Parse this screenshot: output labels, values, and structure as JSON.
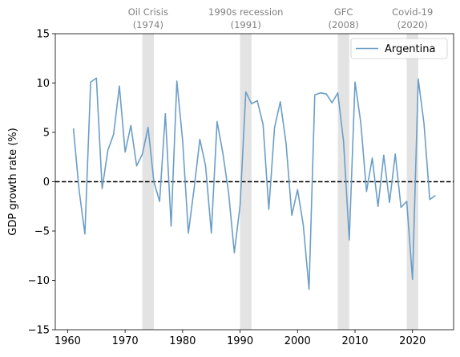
{
  "chart_data": {
    "type": "line",
    "title": "",
    "xlabel": "",
    "ylabel": "GDP growth rate (%)",
    "xlim": [
      1957.85,
      2027.15
    ],
    "ylim": [
      -15,
      15
    ],
    "xticks": [
      1960,
      1970,
      1980,
      1990,
      2000,
      2010,
      2020
    ],
    "yticks": [
      -15,
      -10,
      -5,
      0,
      5,
      10,
      15
    ],
    "grid": false,
    "legend_position": "top-right",
    "zero_line": {
      "y": 0,
      "style": "dashed",
      "color": "#000000"
    },
    "colors": {
      "series": "#6b9ec7",
      "shade": "#e3e3e3",
      "event_text": "#808080"
    },
    "events": [
      {
        "name": "Oil Crisis",
        "year_label": "(1974)",
        "start": 1973,
        "end": 1975
      },
      {
        "name": "1990s recession",
        "year_label": "(1991)",
        "start": 1990,
        "end": 1992
      },
      {
        "name": "GFC",
        "year_label": "(2008)",
        "start": 2007,
        "end": 2009
      },
      {
        "name": "Covid-19",
        "year_label": "(2020)",
        "start": 2019,
        "end": 2021
      }
    ],
    "series": [
      {
        "name": "Argentina",
        "x": [
          1961,
          1962,
          1963,
          1964,
          1965,
          1966,
          1967,
          1968,
          1969,
          1970,
          1971,
          1972,
          1973,
          1974,
          1975,
          1976,
          1977,
          1978,
          1979,
          1980,
          1981,
          1982,
          1983,
          1984,
          1985,
          1986,
          1987,
          1988,
          1989,
          1990,
          1991,
          1992,
          1993,
          1994,
          1995,
          1996,
          1997,
          1998,
          1999,
          2000,
          2001,
          2002,
          2003,
          2004,
          2005,
          2006,
          2007,
          2008,
          2009,
          2010,
          2011,
          2012,
          2013,
          2014,
          2015,
          2016,
          2017,
          2018,
          2019,
          2020,
          2021,
          2022,
          2023,
          2024
        ],
        "values": [
          5.4,
          -0.9,
          -5.3,
          10.1,
          10.5,
          -0.7,
          3.2,
          4.8,
          9.7,
          3.0,
          5.7,
          1.6,
          2.8,
          5.5,
          0.0,
          -2.0,
          6.9,
          -4.5,
          10.2,
          4.2,
          -5.2,
          -0.7,
          4.3,
          1.6,
          -5.2,
          6.1,
          2.9,
          -1.1,
          -7.2,
          -2.4,
          9.1,
          7.9,
          8.2,
          5.8,
          -2.8,
          5.5,
          8.1,
          3.9,
          -3.4,
          -0.8,
          -4.4,
          -10.9,
          8.8,
          9.0,
          8.9,
          8.0,
          9.0,
          4.1,
          -5.9,
          10.1,
          6.0,
          -1.0,
          2.4,
          -2.5,
          2.7,
          -2.1,
          2.8,
          -2.6,
          -2.0,
          -9.9,
          10.4,
          5.9,
          -1.8,
          -1.4
        ]
      }
    ]
  }
}
